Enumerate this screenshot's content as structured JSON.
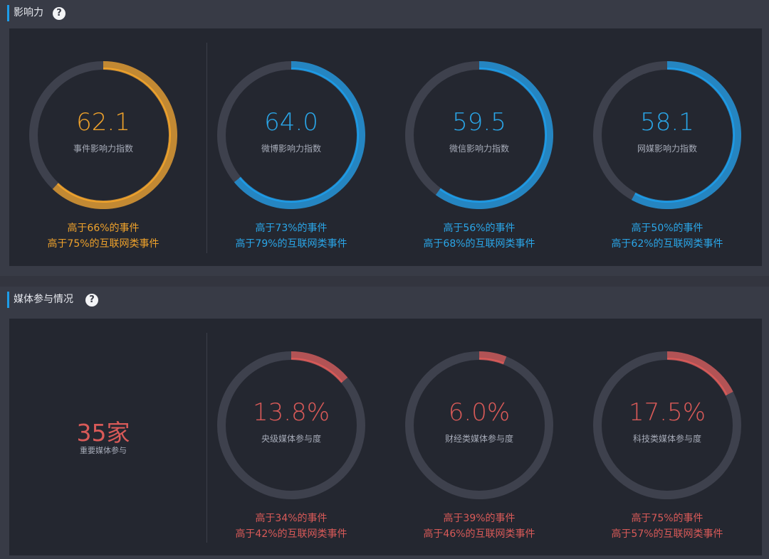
{
  "influence": {
    "title": "影响力",
    "gauges": [
      {
        "value": "62.1",
        "label": "事件影响力指数",
        "line1": "高于66%的事件",
        "line2": "高于75%的互联网类事件",
        "color": "#efa22b",
        "fill_fraction": 0.62
      },
      {
        "value": "64.0",
        "label": "微博影响力指数",
        "line1": "高于73%的事件",
        "line2": "高于79%的互联网类事件",
        "color": "#1d9ce8",
        "fill_fraction": 0.64
      },
      {
        "value": "59.5",
        "label": "微信影响力指数",
        "line1": "高于56%的事件",
        "line2": "高于68%的互联网类事件",
        "color": "#1d9ce8",
        "fill_fraction": 0.6
      },
      {
        "value": "58.1",
        "label": "网媒影响力指数",
        "line1": "高于50%的事件",
        "line2": "高于62%的互联网类事件",
        "color": "#1d9ce8",
        "fill_fraction": 0.58
      }
    ]
  },
  "media": {
    "title": "媒体参与情况",
    "count": "35家",
    "count_label": "重要媒体参与",
    "gauges": [
      {
        "value": "13.8%",
        "label": "央级媒体参与度",
        "line1": "高于34%的事件",
        "line2": "高于42%的互联网类事件",
        "color": "#d95a58",
        "fill_fraction": 0.138
      },
      {
        "value": "6.0%",
        "label": "财经类媒体参与度",
        "line1": "高于39%的事件",
        "line2": "高于46%的互联网类事件",
        "color": "#d95a58",
        "fill_fraction": 0.06
      },
      {
        "value": "17.5%",
        "label": "科技类媒体参与度",
        "line1": "高于75%的事件",
        "line2": "高于57%的互联网类事件",
        "color": "#d95a58",
        "fill_fraction": 0.175
      }
    ]
  },
  "icons": {
    "help": "question-circle-icon"
  },
  "help_glyph": "?"
}
